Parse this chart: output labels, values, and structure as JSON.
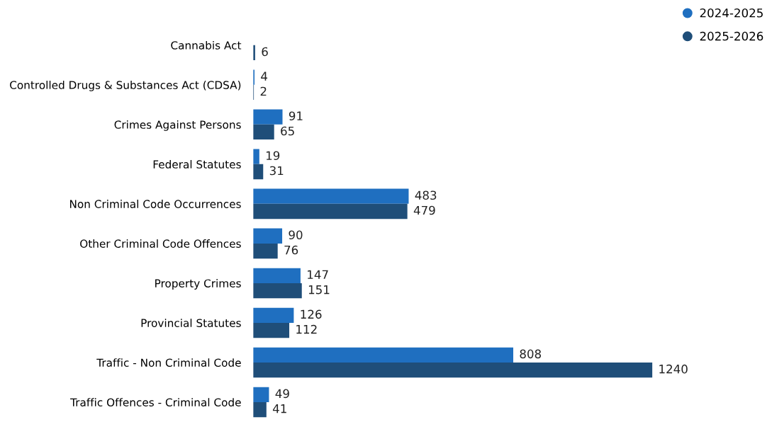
{
  "chart_data": {
    "type": "bar",
    "orientation": "horizontal",
    "data_labels": true,
    "legend": "top right",
    "tick_labels": "y",
    "grid": false,
    "categories": [
      "Cannabis Act",
      "Controlled Drugs & Substances Act (CDSA)",
      "Crimes Against Persons",
      "Federal Statutes",
      "Non Criminal Code Occurrences",
      "Other Criminal Code Offences",
      "Property Crimes",
      "Provincial Statutes",
      "Traffic - Non Criminal Code",
      "Traffic Offences - Criminal Code"
    ],
    "series": [
      {
        "name": "2024-2025",
        "color": "#1f6fc0",
        "values": [
          null,
          4,
          91,
          19,
          483,
          90,
          147,
          126,
          808,
          49
        ]
      },
      {
        "name": "2025-2026",
        "color": "#1f4e79",
        "values": [
          6,
          2,
          65,
          31,
          479,
          76,
          151,
          112,
          1240,
          41
        ]
      }
    ]
  }
}
